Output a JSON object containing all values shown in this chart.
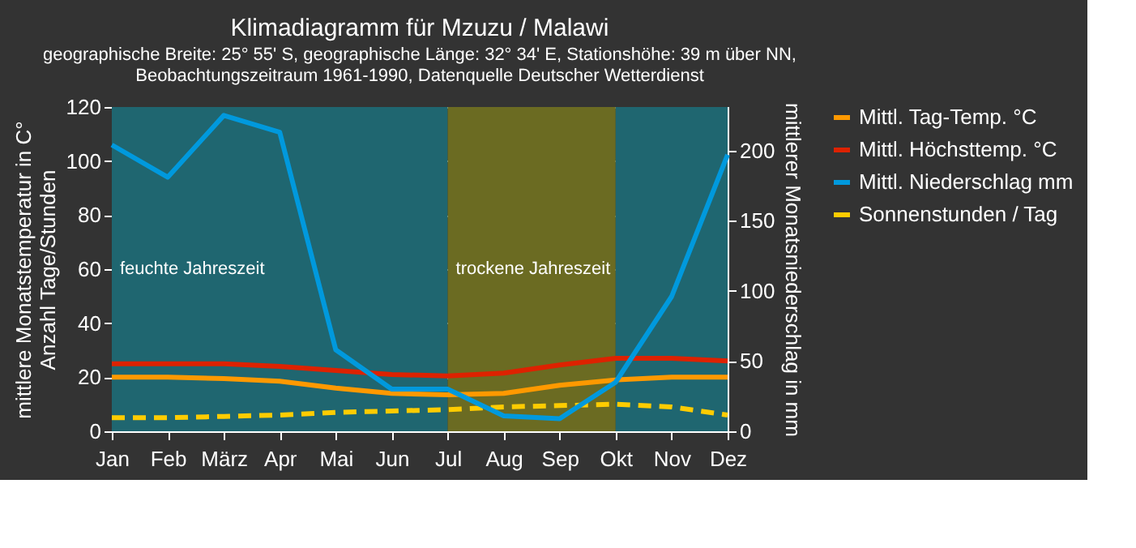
{
  "chart_data": {
    "type": "line",
    "title": "Klimadiagramm für Mzuzu / Malawi",
    "subtitle": "geographische Breite: 25° 55' S, geographische Länge: 32° 34' E, Stationshöhe: 39 m über NN,\nBeobachtungszeitraum 1961-1990, Datenquelle Deutscher Wetterdienst",
    "ylabel": "mittlere Monatstemperatur in C°\nAnzahl Tage/Stunden",
    "y2label": "mittlerer Monatsniederschlag in mm",
    "categories": [
      "Jan",
      "Feb",
      "März",
      "Apr",
      "Mai",
      "Jun",
      "Jul",
      "Aug",
      "Sep",
      "Okt",
      "Nov",
      "Dez"
    ],
    "series": [
      {
        "name": "Mittl. Tag-Temp. °C",
        "color": "#ff9900",
        "values": [
          20,
          20,
          19.5,
          18.5,
          16,
          14,
          13.5,
          14,
          17,
          19,
          20,
          20
        ]
      },
      {
        "name": "Mittl. Höchsttemp. °C",
        "color": "#dd2200",
        "values": [
          25,
          25,
          25,
          24,
          22.5,
          21,
          20.5,
          21.5,
          24.5,
          27,
          27,
          26
        ]
      },
      {
        "name": "Mittl. Niederschlag mm",
        "color": "#0099dd",
        "axis": "y2",
        "values": [
          204,
          181,
          225,
          213,
          58,
          30,
          30,
          11,
          9,
          35,
          96,
          197
        ]
      },
      {
        "name": "Sonnenstunden / Tag",
        "color": "#ffcc00",
        "line_style": "dashed",
        "values": [
          5,
          5,
          5.5,
          6,
          7,
          7.5,
          8,
          9,
          9.5,
          10,
          9,
          6
        ]
      }
    ],
    "bands": [
      {
        "axis": "x",
        "from": "Jan",
        "to": "Jul",
        "label": "feuchte Jahreszeit",
        "color": "#1f6670"
      },
      {
        "axis": "x",
        "from": "Jul",
        "to": "Okt",
        "label": "trockene Jahreszeit",
        "color": "#6b6b22"
      },
      {
        "axis": "x",
        "from": "Okt",
        "to": "Dez",
        "color": "#1f6670"
      }
    ],
    "ylim": [
      0,
      120
    ],
    "yticks": [
      0,
      20,
      40,
      60,
      80,
      100,
      120
    ],
    "y2lim": [
      0,
      231
    ],
    "y2ticks": [
      0,
      50,
      100,
      150,
      200
    ],
    "grid": "y",
    "legend": "right"
  }
}
